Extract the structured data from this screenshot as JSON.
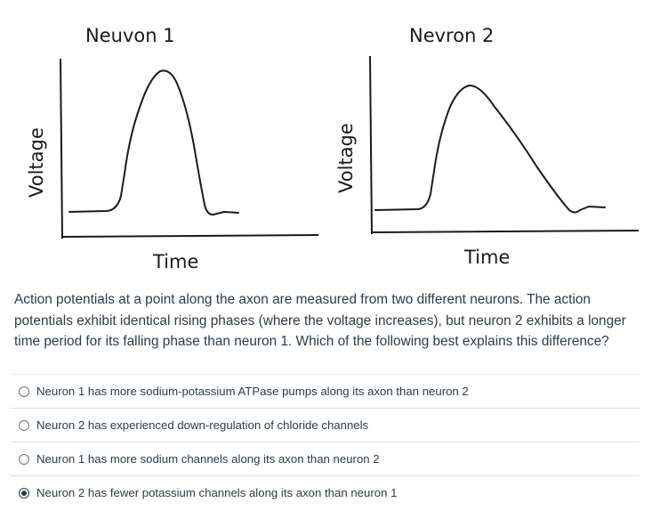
{
  "figure": {
    "neuron1_title": "Neuvon 1",
    "neuron2_title": "Nevron 2",
    "y_label": "Voltage",
    "x_label": "Time"
  },
  "question": {
    "text": "Action potentials at a point along the axon are measured from two different neurons.  The action potentials exhibit identical rising phases (where the voltage increases), but neuron 2 exhibits a longer time period for its falling phase than neuron 1.  Which of the following best explains this difference?"
  },
  "options": [
    {
      "label": "Neuron 1 has more sodium-potassium ATPase pumps along its axon than neuron 2",
      "selected": false
    },
    {
      "label": "Neuron 2 has experienced down-regulation of chloride channels",
      "selected": false
    },
    {
      "label": "Neuron 1 has more sodium channels along its axon than neuron 2",
      "selected": false
    },
    {
      "label": "Neuron 2 has fewer potassium channels along its axon than neuron 1",
      "selected": true
    }
  ]
}
